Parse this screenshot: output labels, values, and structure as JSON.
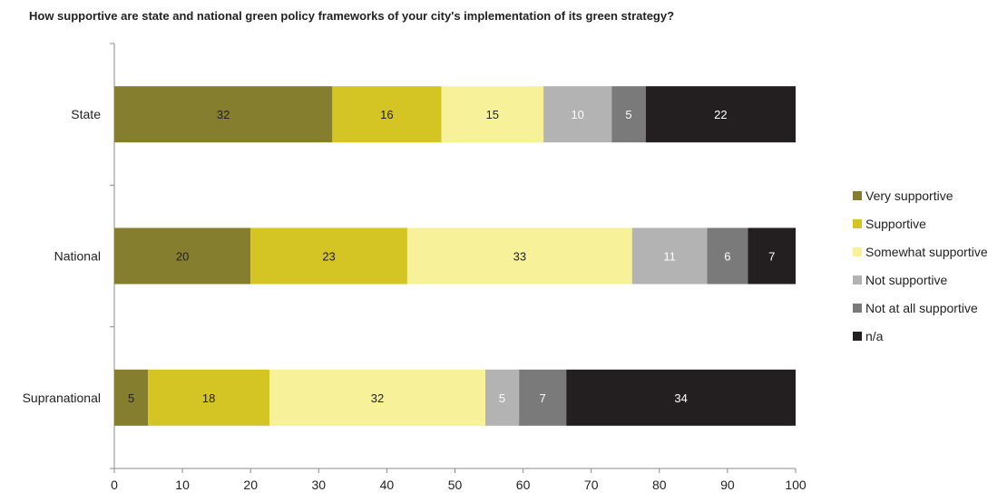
{
  "chart_data": {
    "type": "bar",
    "orientation": "horizontal",
    "stacked": true,
    "title": "How supportive are state and national green policy frameworks of your city's implementation of its green strategy?",
    "categories": [
      "State",
      "National",
      "Supranational"
    ],
    "series": [
      {
        "name": "Very supportive",
        "color": "#857e2f",
        "values": [
          32,
          20,
          5
        ]
      },
      {
        "name": "Supportive",
        "color": "#d4c424",
        "values": [
          16,
          23,
          18
        ]
      },
      {
        "name": "Somewhat supportive",
        "color": "#f7f29a",
        "values": [
          15,
          33,
          32
        ]
      },
      {
        "name": "Not supportive",
        "color": "#b3b3b3",
        "values": [
          10,
          11,
          5
        ]
      },
      {
        "name": "Not at all supportive",
        "color": "#7a7a7a",
        "values": [
          5,
          6,
          7
        ]
      },
      {
        "name": "n/a",
        "color": "#231f20",
        "values": [
          22,
          7,
          34
        ]
      }
    ],
    "xlim": [
      0,
      100
    ],
    "xticks": [
      "0",
      "10",
      "20",
      "30",
      "40",
      "50",
      "60",
      "70",
      "80",
      "90",
      "100"
    ],
    "legend_position": "right",
    "grid": false
  }
}
